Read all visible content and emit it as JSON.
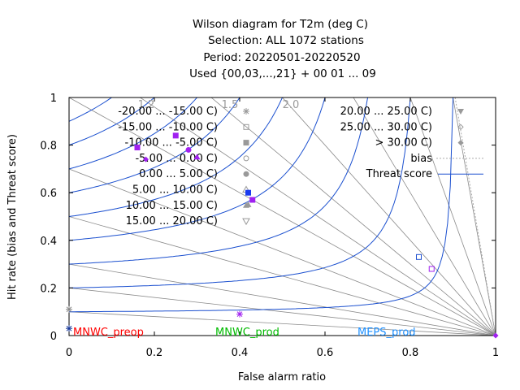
{
  "chart_data": {
    "type": "scatter",
    "title_lines": [
      "Wilson diagram  for T2m (deg C)",
      "Selection: ALL    1072 stations",
      "Period: 20220501-20220520",
      "Used {00,03,...,21} + 00 01 ... 09"
    ],
    "xlabel": "False alarm ratio",
    "ylabel": "Hit rate (bias and Threat score)",
    "xlim": [
      0,
      1
    ],
    "ylim": [
      0,
      1
    ],
    "xticks": [
      "0",
      "0.2",
      "0.4",
      "0.6",
      "0.8",
      "1"
    ],
    "yticks": [
      "0",
      "0.2",
      "0.4",
      "0.6",
      "0.8",
      "1"
    ],
    "bias_levels": [
      0.1,
      0.2,
      0.3,
      0.5,
      0.7,
      1.0,
      1.2,
      1.5,
      2.0,
      3.0,
      5.0,
      10.0
    ],
    "bias_labels": [
      "1.2",
      "1.5",
      "2.0"
    ],
    "threat_levels": [
      0.1,
      0.2,
      0.3,
      0.4,
      0.5,
      0.6,
      0.7,
      0.8,
      0.9
    ],
    "legend_left": [
      {
        "label": "-20.00 ... -15.00 C)",
        "marker": "asterisk"
      },
      {
        "label": "-15.00 ... -10.00 C)",
        "marker": "square-open"
      },
      {
        "label": "-10.00 ... -5.00 C)",
        "marker": "square-filled"
      },
      {
        "label": "-5.00 ... 0.00 C)",
        "marker": "circle-open"
      },
      {
        "label": "0.00 ... 5.00 C)",
        "marker": "circle-filled"
      },
      {
        "label": "5.00 ... 10.00 C)",
        "marker": "triangle-open"
      },
      {
        "label": "10.00 ... 15.00 C)",
        "marker": "triangle-filled"
      },
      {
        "label": "15.00 ... 20.00 C)",
        "marker": "triangle-down-open"
      }
    ],
    "legend_right": [
      {
        "label": "20.00 ... 25.00 C)",
        "marker": "triangle-down-filled"
      },
      {
        "label": "25.00 ... 30.00 C)",
        "marker": "diamond-open"
      },
      {
        "label": "> 30.00 C)",
        "marker": "diamond-filled"
      },
      {
        "label": "bias",
        "marker": "line-dotted"
      },
      {
        "label": "Threat score",
        "marker": "line-blue"
      }
    ],
    "models": [
      {
        "name": "MNWC_preop",
        "color": "#ff0000"
      },
      {
        "name": "MNWC_prod",
        "color": "#00bb00"
      },
      {
        "name": "MEPS_prod",
        "color": "#1e90ff"
      }
    ],
    "series": [
      {
        "name": "MNWC_preop",
        "color": "#a020f0",
        "points": [
          {
            "x": 0.0,
            "y": 0.11,
            "marker": "asterisk",
            "color": "#888888"
          },
          {
            "x": 0.0,
            "y": 0.03,
            "marker": "asterisk",
            "color": "#1a3a9a"
          },
          {
            "x": 0.4,
            "y": 0.09,
            "marker": "asterisk"
          },
          {
            "x": 0.16,
            "y": 0.79,
            "marker": "square-filled"
          },
          {
            "x": 0.25,
            "y": 0.84,
            "marker": "square-filled"
          },
          {
            "x": 0.28,
            "y": 0.78,
            "marker": "circle-filled"
          },
          {
            "x": 0.3,
            "y": 0.75,
            "marker": "triangle-filled"
          },
          {
            "x": 0.18,
            "y": 0.74,
            "marker": "diamond-filled"
          },
          {
            "x": 0.43,
            "y": 0.57,
            "marker": "square-filled"
          },
          {
            "x": 0.85,
            "y": 0.28,
            "marker": "square-open"
          },
          {
            "x": 1.0,
            "y": 0.0,
            "marker": "diamond-filled"
          }
        ]
      },
      {
        "name": "MNWC_prod",
        "color": "#1a3af0",
        "points": [
          {
            "x": 0.42,
            "y": 0.6,
            "marker": "square-filled"
          },
          {
            "x": 0.42,
            "y": 0.55,
            "marker": "triangle-filled",
            "color": "#999999"
          },
          {
            "x": 0.82,
            "y": 0.33,
            "marker": "square-open",
            "color": "#1e50d0"
          }
        ]
      }
    ]
  }
}
